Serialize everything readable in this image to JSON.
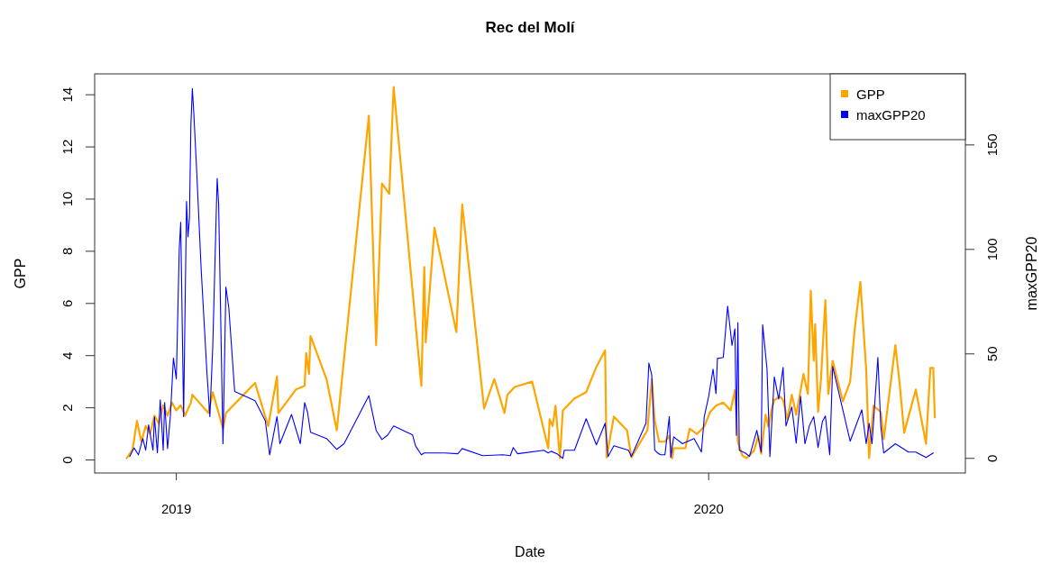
{
  "chart_data": {
    "type": "line",
    "title": "Rec del Molí",
    "xlabel": "Date",
    "ylabel": "GPP",
    "y2label": "maxGPP20",
    "xlim": [
      "2018-11-06",
      "2020-06-25"
    ],
    "xticks": [
      "2019",
      "2020"
    ],
    "ylim": [
      -0.5,
      14.8
    ],
    "yticks": [
      0,
      2,
      4,
      6,
      8,
      10,
      12,
      14
    ],
    "y2lim": [
      -7,
      184
    ],
    "y2ticks": [
      0,
      50,
      100,
      150
    ],
    "legend": "top right",
    "series": [
      {
        "name": "GPP",
        "color": "#ffa500",
        "x": [
          "2018-11-28",
          "2018-12-02",
          "2018-12-05",
          "2018-12-08",
          "2018-12-11",
          "2018-12-14",
          "2018-12-17",
          "2018-12-20",
          "2018-12-23",
          "2018-12-26",
          "2018-12-29",
          "2019-01-01",
          "2019-01-04",
          "2019-01-07",
          "2019-01-11",
          "2019-01-12",
          "2019-01-23",
          "2019-01-26",
          "2019-02-02",
          "2019-02-04",
          "2019-02-24",
          "2019-03-05",
          "2019-03-11",
          "2019-03-12",
          "2019-03-24",
          "2019-03-30",
          "2019-03-31",
          "2019-04-02",
          "2019-04-03",
          "2019-04-14",
          "2019-04-21",
          "2019-05-13",
          "2019-05-18",
          "2019-05-22",
          "2019-05-27",
          "2019-05-30",
          "2019-06-18",
          "2019-06-20",
          "2019-06-21",
          "2019-06-27",
          "2019-07-12",
          "2019-07-16",
          "2019-07-31",
          "2019-08-07",
          "2019-08-14",
          "2019-08-16",
          "2019-08-21",
          "2019-09-02",
          "2019-09-13",
          "2019-09-14",
          "2019-09-16",
          "2019-09-18",
          "2019-09-21",
          "2019-09-23",
          "2019-10-01",
          "2019-10-09",
          "2019-10-16",
          "2019-10-22",
          "2019-10-23",
          "2019-10-28",
          "2019-11-06",
          "2019-11-09",
          "2019-11-20",
          "2019-11-23",
          "2019-11-25",
          "2019-11-28",
          "2019-12-02",
          "2019-12-05",
          "2019-12-07",
          "2019-12-08",
          "2019-12-16",
          "2019-12-19",
          "2019-12-24",
          "2019-12-29",
          "2020-01-02",
          "2020-01-06",
          "2020-01-11",
          "2020-01-16",
          "2020-01-19",
          "2020-01-21",
          "2020-01-24",
          "2020-01-27",
          "2020-02-01",
          "2020-02-04",
          "2020-02-06",
          "2020-02-09",
          "2020-02-11",
          "2020-02-13",
          "2020-02-15",
          "2020-02-19",
          "2020-02-21",
          "2020-02-24",
          "2020-02-27",
          "2020-03-01",
          "2020-03-06",
          "2020-03-09",
          "2020-03-11",
          "2020-03-13",
          "2020-03-14",
          "2020-03-16",
          "2020-03-18",
          "2020-03-21",
          "2020-03-23",
          "2020-03-26",
          "2020-04-02",
          "2020-04-07",
          "2020-04-10",
          "2020-04-14",
          "2020-04-18",
          "2020-04-20",
          "2020-04-23",
          "2020-04-28",
          "2020-04-30",
          "2020-05-08",
          "2020-05-11",
          "2020-05-14",
          "2020-05-22",
          "2020-05-29",
          "2020-06-01",
          "2020-06-03",
          "2020-06-04"
        ],
        "values": [
          0.07,
          0.4,
          1.5,
          0.7,
          1.3,
          1.0,
          1.7,
          1.4,
          2.1,
          1.7,
          2.2,
          1.9,
          2.1,
          1.7,
          2.2,
          2.5,
          1.8,
          2.6,
          1.2,
          1.8,
          2.95,
          1.3,
          3.2,
          1.8,
          2.7,
          2.84,
          4.1,
          3.3,
          4.75,
          3.1,
          1.14,
          13.2,
          4.4,
          10.6,
          10.2,
          14.3,
          2.84,
          7.4,
          4.5,
          8.9,
          4.9,
          9.8,
          1.97,
          3.1,
          1.8,
          2.5,
          2.8,
          3.0,
          0.45,
          1.56,
          1.3,
          2.08,
          0.07,
          1.9,
          2.36,
          2.6,
          3.57,
          4.2,
          0.1,
          1.66,
          1.14,
          0.1,
          1.14,
          3.1,
          1.5,
          0.7,
          0.7,
          0.93,
          0.07,
          0.45,
          0.45,
          1.2,
          1.0,
          1.28,
          1.84,
          2.08,
          2.2,
          1.9,
          2.67,
          0.7,
          0.17,
          0.07,
          0.35,
          0.93,
          0.24,
          1.73,
          1.28,
          1.9,
          2.3,
          2.43,
          2.3,
          1.56,
          2.5,
          1.73,
          3.3,
          2.53,
          6.48,
          3.8,
          5.2,
          1.84,
          3.1,
          6.13,
          2.53,
          3.8,
          2.25,
          3.0,
          4.96,
          6.83,
          3.46,
          0.07,
          2.08,
          1.84,
          0.8,
          4.4,
          2.9,
          1.04,
          2.7,
          0.62,
          3.53,
          3.53,
          1.63
        ]
      },
      {
        "name": "maxGPP20",
        "color": "#0000ff",
        "axis": "y2",
        "x": [
          "2018-11-30",
          "2018-12-03",
          "2018-12-06",
          "2018-12-09",
          "2018-12-11",
          "2018-12-13",
          "2018-12-16",
          "2018-12-17",
          "2018-12-19",
          "2018-12-21",
          "2018-12-23",
          "2018-12-24",
          "2018-12-26",
          "2018-12-28",
          "2018-12-30",
          "2019-01-01",
          "2019-01-03",
          "2019-01-04",
          "2019-01-06",
          "2019-01-08",
          "2019-01-09",
          "2019-01-10",
          "2019-01-11",
          "2019-01-12",
          "2019-01-13",
          "2019-01-15",
          "2019-01-18",
          "2019-01-22",
          "2019-01-24",
          "2019-01-26",
          "2019-01-29",
          "2019-01-30",
          "2019-02-02",
          "2019-02-04",
          "2019-02-06",
          "2019-02-10",
          "2019-02-24",
          "2019-03-03",
          "2019-03-06",
          "2019-03-11",
          "2019-03-13",
          "2019-03-21",
          "2019-03-27",
          "2019-03-30",
          "2019-04-01",
          "2019-04-03",
          "2019-04-14",
          "2019-04-21",
          "2019-04-26",
          "2019-05-13",
          "2019-05-18",
          "2019-05-22",
          "2019-05-26",
          "2019-05-30",
          "2019-06-12",
          "2019-06-14",
          "2019-06-18",
          "2019-06-20",
          "2019-07-04",
          "2019-07-13",
          "2019-07-16",
          "2019-07-30",
          "2019-08-13",
          "2019-08-18",
          "2019-08-20",
          "2019-08-23",
          "2019-09-10",
          "2019-09-13",
          "2019-09-15",
          "2019-09-19",
          "2019-09-23",
          "2019-09-24",
          "2019-10-01",
          "2019-10-09",
          "2019-10-16",
          "2019-10-22",
          "2019-10-24",
          "2019-10-28",
          "2019-11-07",
          "2019-11-09",
          "2019-11-19",
          "2019-11-21",
          "2019-11-23",
          "2019-11-25",
          "2019-11-27",
          "2019-11-29",
          "2019-12-02",
          "2019-12-05",
          "2019-12-06",
          "2019-12-08",
          "2019-12-14",
          "2019-12-22",
          "2019-12-27",
          "2019-12-29",
          "2020-01-01",
          "2020-01-04",
          "2020-01-06",
          "2020-01-07",
          "2020-01-11",
          "2020-01-14",
          "2020-01-17",
          "2020-01-19",
          "2020-01-20",
          "2020-01-21",
          "2020-01-22",
          "2020-01-26",
          "2020-01-29",
          "2020-02-03",
          "2020-02-06",
          "2020-02-07",
          "2020-02-10",
          "2020-02-12",
          "2020-02-15",
          "2020-02-18",
          "2020-02-21",
          "2020-02-23",
          "2020-02-27",
          "2020-03-01",
          "2020-03-04",
          "2020-03-07",
          "2020-03-10",
          "2020-03-13",
          "2020-03-16",
          "2020-03-19",
          "2020-03-21",
          "2020-03-24",
          "2020-03-26",
          "2020-04-07",
          "2020-04-15",
          "2020-04-18",
          "2020-04-20",
          "2020-04-22",
          "2020-04-26",
          "2020-04-28",
          "2020-04-30",
          "2020-05-08",
          "2020-05-17",
          "2020-05-22",
          "2020-05-29",
          "2020-06-03"
        ],
        "values": [
          0.9,
          5,
          1.7,
          9.5,
          3.9,
          16,
          3.9,
          19.8,
          2.6,
          28,
          3.9,
          26.7,
          4.7,
          21,
          48,
          38,
          100,
          113,
          20,
          123,
          106,
          115,
          160,
          177,
          165,
          137,
          91,
          41,
          20,
          54,
          134,
          122,
          7,
          82,
          72,
          32,
          27.6,
          18,
          1.7,
          20,
          7,
          21,
          7,
          26.7,
          22,
          12.5,
          9.5,
          4.3,
          7,
          30,
          13.4,
          9,
          11.2,
          15.5,
          11.2,
          6,
          1.7,
          2.6,
          2.6,
          2.2,
          4.7,
          1.3,
          1.7,
          1.3,
          5.2,
          2.2,
          3.9,
          2.6,
          3.4,
          2.2,
          0,
          3.9,
          3.9,
          19,
          6.5,
          16.8,
          0.9,
          6,
          3.9,
          0.9,
          16.8,
          45.7,
          39.7,
          3.9,
          2.6,
          1.7,
          1.7,
          20,
          0.4,
          10.3,
          7,
          9.5,
          3,
          20,
          29.7,
          42.7,
          31,
          47.8,
          48.3,
          72.8,
          54,
          62,
          11,
          65,
          3.9,
          2.6,
          0.9,
          13.4,
          3,
          64,
          42.7,
          0.9,
          39,
          28.4,
          43.5,
          15.5,
          24.6,
          7.3,
          29.7,
          7,
          15.5,
          20,
          5.2,
          17.7,
          20.3,
          1.7,
          44,
          8.2,
          23.3,
          7,
          16.8,
          7,
          48.3,
          15.5,
          2.6,
          7,
          3,
          3,
          0.4,
          2.6
        ]
      }
    ]
  }
}
